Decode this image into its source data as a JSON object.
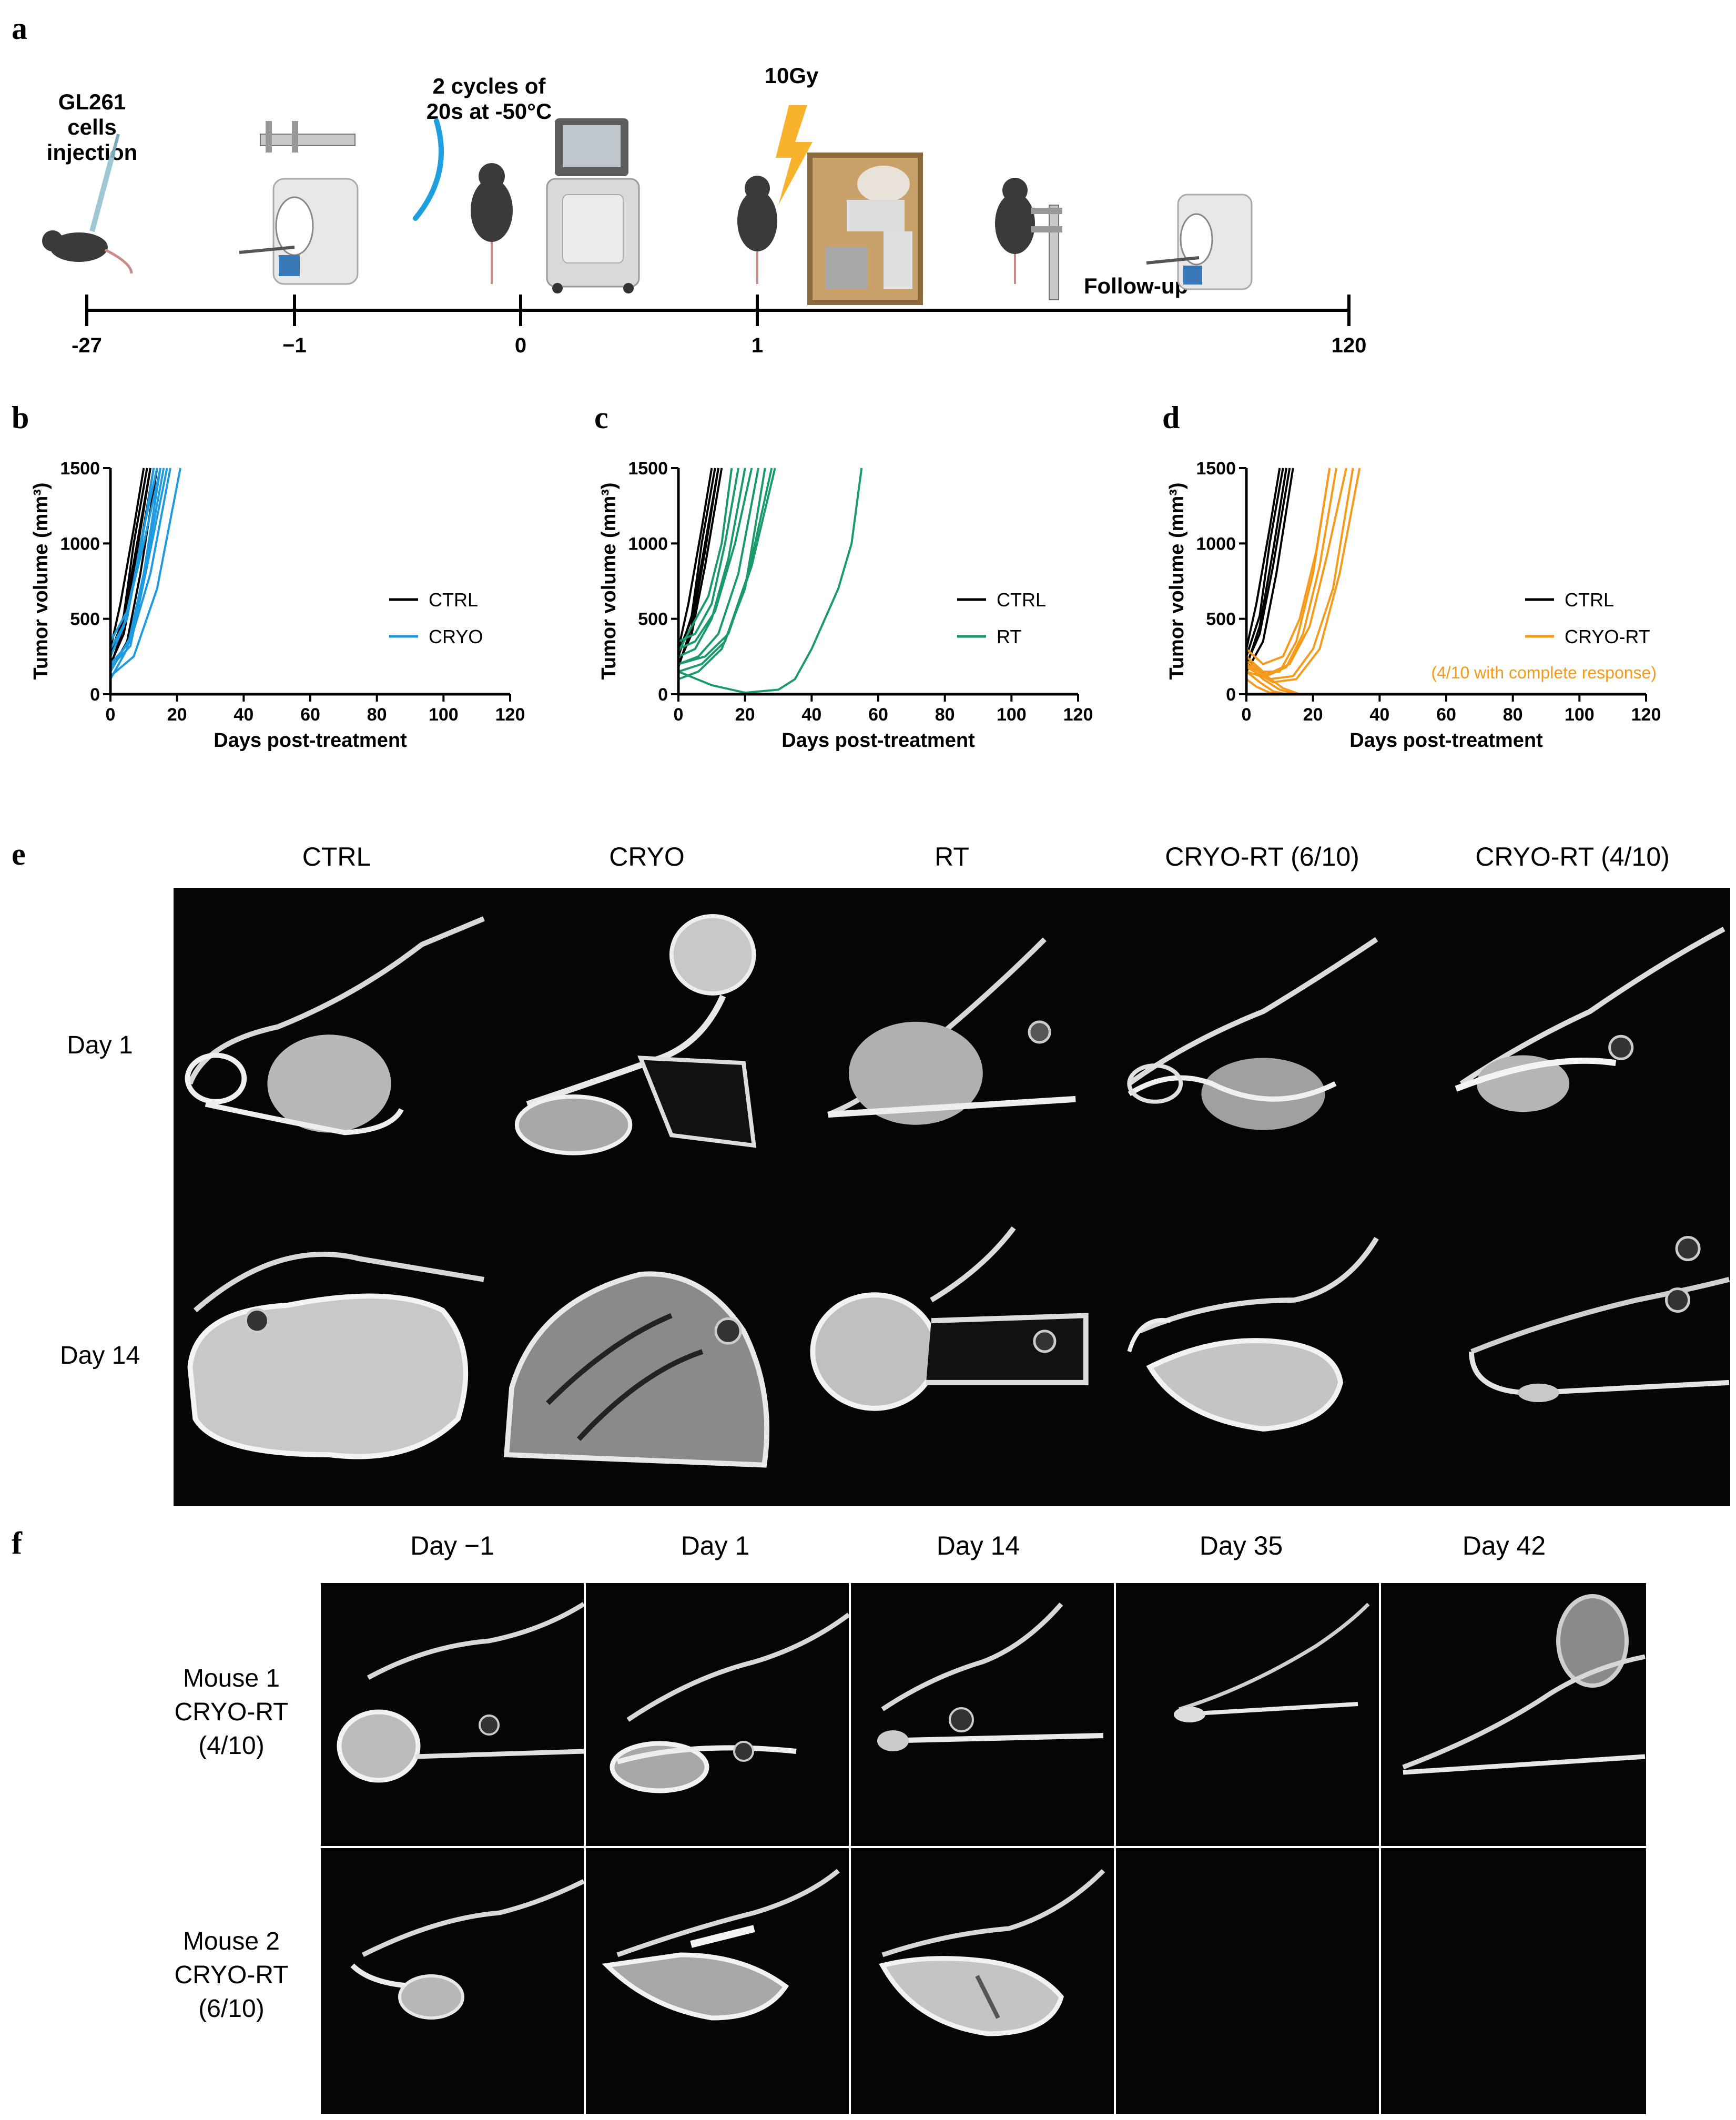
{
  "panels": {
    "a": "a",
    "b": "b",
    "c": "c",
    "d": "d",
    "e": "e",
    "f": "f"
  },
  "timeline": {
    "injection_label": "GL261 cells\ninjection",
    "cryo_label": "2 cycles of\n20s at -50°C",
    "dose_label": "10Gy",
    "followup_label": "Follow-up",
    "ticks": [
      "-27",
      "−1",
      "0",
      "1",
      "120"
    ]
  },
  "chart_data": [
    {
      "type": "line",
      "panel": "b",
      "xlabel": "Days post-treatment",
      "ylabel": "Tumor volume (mm³)",
      "xlim": [
        0,
        120
      ],
      "ylim": [
        0,
        1500
      ],
      "xticks": [
        0,
        20,
        40,
        60,
        80,
        100,
        120
      ],
      "yticks": [
        0,
        500,
        1000,
        1500
      ],
      "legend": [
        "CTRL",
        "CRYO"
      ],
      "legend_position": "center-right",
      "series": [
        {
          "group": "CTRL",
          "color": "#000000",
          "x": [
            0,
            4,
            8,
            12
          ],
          "y": [
            180,
            450,
            950,
            1500
          ]
        },
        {
          "group": "CTRL",
          "color": "#000000",
          "x": [
            0,
            4,
            7,
            11
          ],
          "y": [
            250,
            520,
            1000,
            1500
          ]
        },
        {
          "group": "CTRL",
          "color": "#000000",
          "x": [
            0,
            3,
            7,
            10
          ],
          "y": [
            300,
            600,
            1100,
            1500
          ]
        },
        {
          "group": "CTRL",
          "color": "#000000",
          "x": [
            0,
            4,
            8,
            13
          ],
          "y": [
            200,
            400,
            850,
            1500
          ]
        },
        {
          "group": "CTRL",
          "color": "#000000",
          "x": [
            0,
            4,
            8,
            12
          ],
          "y": [
            280,
            500,
            1000,
            1500
          ]
        },
        {
          "group": "CTRL",
          "color": "#000000",
          "x": [
            0,
            5,
            9,
            14
          ],
          "y": [
            150,
            350,
            800,
            1500
          ]
        },
        {
          "group": "CRYO",
          "color": "#1e9be0",
          "x": [
            0,
            5,
            10,
            15
          ],
          "y": [
            100,
            300,
            800,
            1500
          ]
        },
        {
          "group": "CRYO",
          "color": "#1e9be0",
          "x": [
            0,
            6,
            11,
            16
          ],
          "y": [
            150,
            380,
            900,
            1500
          ]
        },
        {
          "group": "CRYO",
          "color": "#1e9be0",
          "x": [
            0,
            5,
            9,
            14
          ],
          "y": [
            300,
            500,
            1000,
            1500
          ]
        },
        {
          "group": "CRYO",
          "color": "#1e9be0",
          "x": [
            0,
            6,
            12,
            18
          ],
          "y": [
            200,
            350,
            800,
            1500
          ]
        },
        {
          "group": "CRYO",
          "color": "#1e9be0",
          "x": [
            0,
            7,
            14,
            21
          ],
          "y": [
            120,
            250,
            700,
            1500
          ]
        },
        {
          "group": "CRYO",
          "color": "#1e9be0",
          "x": [
            0,
            4,
            9,
            13
          ],
          "y": [
            250,
            450,
            950,
            1500
          ]
        },
        {
          "group": "CRYO",
          "color": "#1e9be0",
          "x": [
            0,
            6,
            11,
            17
          ],
          "y": [
            180,
            320,
            850,
            1500
          ]
        },
        {
          "group": "CRYO",
          "color": "#1e9be0",
          "x": [
            0,
            5,
            10,
            15
          ],
          "y": [
            350,
            550,
            1000,
            1500
          ]
        }
      ]
    },
    {
      "type": "line",
      "panel": "c",
      "xlabel": "Days post-treatment",
      "ylabel": "Tumor volume (mm³)",
      "xlim": [
        0,
        120
      ],
      "ylim": [
        0,
        1500
      ],
      "xticks": [
        0,
        20,
        40,
        60,
        80,
        100,
        120
      ],
      "yticks": [
        0,
        500,
        1000,
        1500
      ],
      "legend": [
        "CTRL",
        "RT"
      ],
      "legend_position": "center-right",
      "series": [
        {
          "group": "CTRL",
          "color": "#000000",
          "x": [
            0,
            4,
            8,
            12
          ],
          "y": [
            180,
            450,
            950,
            1500
          ]
        },
        {
          "group": "CTRL",
          "color": "#000000",
          "x": [
            0,
            4,
            7,
            11
          ],
          "y": [
            250,
            520,
            1000,
            1500
          ]
        },
        {
          "group": "CTRL",
          "color": "#000000",
          "x": [
            0,
            3,
            7,
            10
          ],
          "y": [
            300,
            600,
            1100,
            1500
          ]
        },
        {
          "group": "CTRL",
          "color": "#000000",
          "x": [
            0,
            4,
            8,
            13
          ],
          "y": [
            200,
            400,
            850,
            1500
          ]
        },
        {
          "group": "CTRL",
          "color": "#000000",
          "x": [
            0,
            4,
            8,
            12
          ],
          "y": [
            280,
            500,
            1000,
            1500
          ]
        },
        {
          "group": "RT",
          "color": "#1a9a6a",
          "x": [
            0,
            5,
            10,
            15,
            20
          ],
          "y": [
            250,
            300,
            500,
            900,
            1500
          ]
        },
        {
          "group": "RT",
          "color": "#1a9a6a",
          "x": [
            0,
            6,
            12,
            18,
            24
          ],
          "y": [
            200,
            250,
            400,
            800,
            1500
          ]
        },
        {
          "group": "RT",
          "color": "#1a9a6a",
          "x": [
            0,
            5,
            11,
            17,
            22
          ],
          "y": [
            300,
            350,
            550,
            1000,
            1500
          ]
        },
        {
          "group": "RT",
          "color": "#1a9a6a",
          "x": [
            0,
            7,
            14,
            21,
            28
          ],
          "y": [
            150,
            200,
            350,
            800,
            1500
          ]
        },
        {
          "group": "RT",
          "color": "#1a9a6a",
          "x": [
            0,
            5,
            10,
            14,
            18
          ],
          "y": [
            350,
            400,
            600,
            1000,
            1500
          ]
        },
        {
          "group": "RT",
          "color": "#1a9a6a",
          "x": [
            0,
            6,
            13,
            20,
            26
          ],
          "y": [
            100,
            150,
            300,
            700,
            1500
          ]
        },
        {
          "group": "RT",
          "color": "#1a9a6a",
          "x": [
            0,
            8,
            15,
            22,
            29
          ],
          "y": [
            200,
            250,
            400,
            850,
            1500
          ]
        },
        {
          "group": "RT",
          "color": "#1a9a6a",
          "x": [
            0,
            4,
            9,
            13,
            16
          ],
          "y": [
            280,
            450,
            650,
            1000,
            1500
          ]
        },
        {
          "group": "RT",
          "color": "#1a9a6a",
          "x": [
            0,
            10,
            20,
            30,
            35,
            40,
            45,
            48,
            52,
            55
          ],
          "y": [
            150,
            60,
            10,
            30,
            100,
            300,
            550,
            700,
            1000,
            1500
          ]
        }
      ]
    },
    {
      "type": "line",
      "panel": "d",
      "xlabel": "Days post-treatment",
      "ylabel": "Tumor volume (mm³)",
      "xlim": [
        0,
        120
      ],
      "ylim": [
        0,
        1500
      ],
      "xticks": [
        0,
        20,
        40,
        60,
        80,
        100,
        120
      ],
      "yticks": [
        0,
        500,
        1000,
        1500
      ],
      "legend": [
        "CTRL",
        "CRYO-RT"
      ],
      "legend_position": "center-right",
      "annotation": "(4/10 with complete response)",
      "series": [
        {
          "group": "CTRL",
          "color": "#000000",
          "x": [
            0,
            4,
            8,
            12
          ],
          "y": [
            180,
            450,
            950,
            1500
          ]
        },
        {
          "group": "CTRL",
          "color": "#000000",
          "x": [
            0,
            4,
            7,
            11
          ],
          "y": [
            250,
            520,
            1000,
            1500
          ]
        },
        {
          "group": "CTRL",
          "color": "#000000",
          "x": [
            0,
            3,
            7,
            10
          ],
          "y": [
            300,
            600,
            1100,
            1500
          ]
        },
        {
          "group": "CTRL",
          "color": "#000000",
          "x": [
            0,
            4,
            8,
            13
          ],
          "y": [
            200,
            400,
            850,
            1500
          ]
        },
        {
          "group": "CTRL",
          "color": "#000000",
          "x": [
            0,
            5,
            9,
            14
          ],
          "y": [
            150,
            350,
            800,
            1500
          ]
        },
        {
          "group": "CRYO-RT",
          "color": "#f59a1a",
          "x": [
            0,
            5,
            10,
            15,
            20,
            25
          ],
          "y": [
            250,
            150,
            150,
            350,
            800,
            1500
          ]
        },
        {
          "group": "CRYO-RT",
          "color": "#f59a1a",
          "x": [
            0,
            6,
            12,
            17,
            22,
            27
          ],
          "y": [
            200,
            120,
            180,
            400,
            850,
            1500
          ]
        },
        {
          "group": "CRYO-RT",
          "color": "#f59a1a",
          "x": [
            0,
            7,
            14,
            20,
            26,
            32
          ],
          "y": [
            150,
            100,
            120,
            300,
            700,
            1500
          ]
        },
        {
          "group": "CRYO-RT",
          "color": "#f59a1a",
          "x": [
            0,
            5,
            11,
            16,
            21,
            25
          ],
          "y": [
            300,
            200,
            250,
            500,
            950,
            1500
          ]
        },
        {
          "group": "CRYO-RT",
          "color": "#f59a1a",
          "x": [
            0,
            8,
            15,
            22,
            28,
            34
          ],
          "y": [
            180,
            80,
            100,
            300,
            800,
            1500
          ]
        },
        {
          "group": "CRYO-RT",
          "color": "#f59a1a",
          "x": [
            0,
            6,
            13,
            19,
            24,
            30
          ],
          "y": [
            220,
            130,
            200,
            450,
            900,
            1500
          ]
        },
        {
          "group": "CRYO-RT",
          "color": "#f59a1a",
          "x": [
            0,
            5,
            10,
            15,
            120
          ],
          "y": [
            200,
            100,
            30,
            0,
            0
          ]
        },
        {
          "group": "CRYO-RT",
          "color": "#f59a1a",
          "x": [
            0,
            4,
            8,
            12,
            120
          ],
          "y": [
            150,
            80,
            20,
            0,
            0
          ]
        },
        {
          "group": "CRYO-RT",
          "color": "#f59a1a",
          "x": [
            0,
            6,
            11,
            16,
            120
          ],
          "y": [
            250,
            120,
            40,
            0,
            0
          ]
        },
        {
          "group": "CRYO-RT",
          "color": "#f59a1a",
          "x": [
            0,
            3,
            7,
            10,
            120
          ],
          "y": [
            100,
            50,
            10,
            0,
            0
          ]
        }
      ]
    }
  ],
  "panel_e": {
    "columns": [
      "CTRL",
      "CRYO",
      "RT",
      "CRYO-RT (6/10)",
      "CRYO-RT (4/10)"
    ],
    "rows": [
      "Day 1",
      "Day 14"
    ]
  },
  "panel_f": {
    "columns": [
      "Day −1",
      "Day 1",
      "Day 14",
      "Day 35",
      "Day 42"
    ],
    "rows": [
      {
        "line1": "Mouse 1",
        "line2": "CRYO-RT",
        "line3": "(4/10)"
      },
      {
        "line1": "Mouse 2",
        "line2": "CRYO-RT",
        "line3": "(6/10)"
      }
    ]
  }
}
